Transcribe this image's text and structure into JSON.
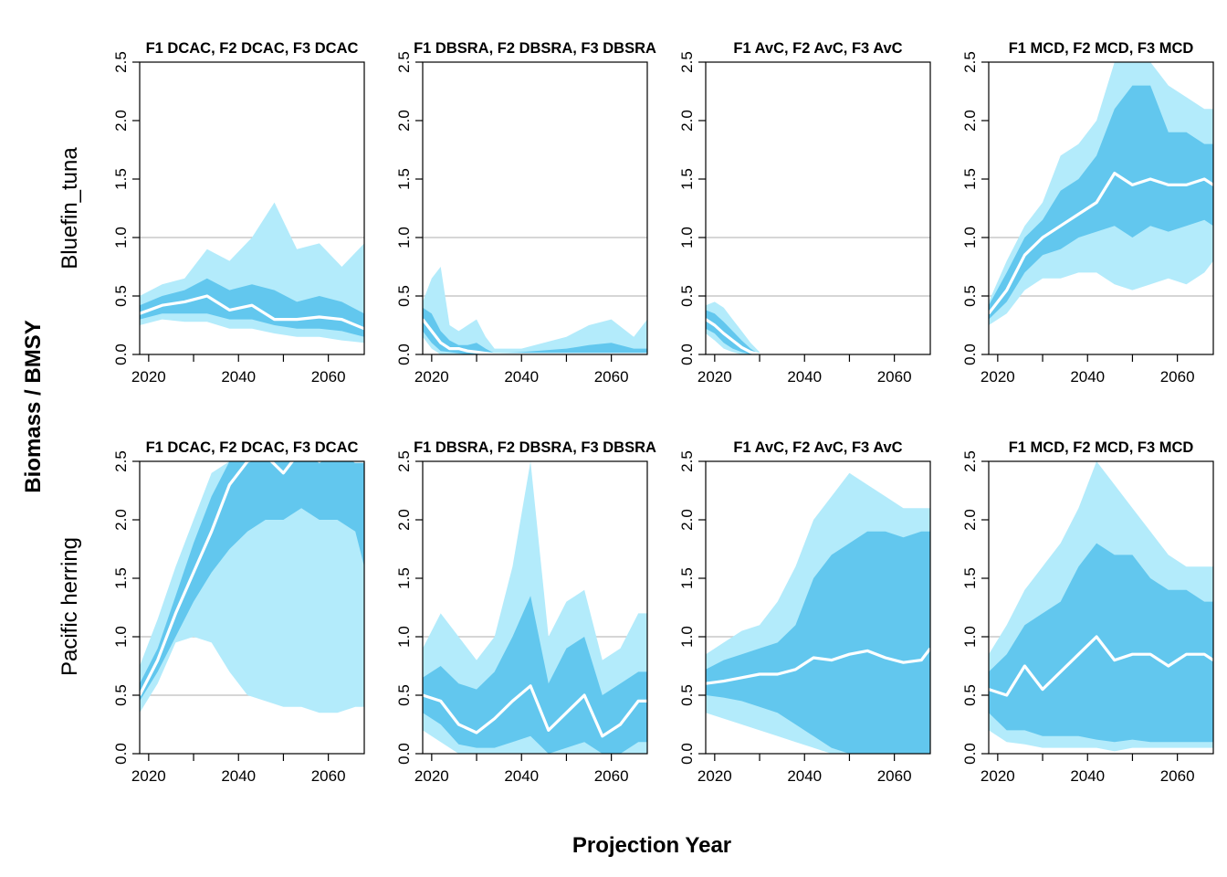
{
  "figure": {
    "ylabel": "Biomass / BMSY",
    "xlabel": "Projection Year",
    "row_labels": [
      "Bluefin_tuna",
      "Pacific herring"
    ],
    "colors": {
      "outer_band": "#b3ebfb",
      "inner_band": "#62c7ee",
      "median": "#ffffff",
      "reference_line": "#c8c8c8",
      "axis": "#000000"
    }
  },
  "chart_data": [
    {
      "type": "area",
      "stock": "Bluefin_tuna",
      "title": "F1 DCAC, F2 DCAC, F3 DCAC",
      "xlim": [
        2018,
        2068
      ],
      "ylim": [
        0,
        2.5
      ],
      "xticks": [
        2020,
        2030,
        2040,
        2050,
        2060
      ],
      "xtick_labels": [
        "2020",
        "2040",
        "2060"
      ],
      "yticks": [
        0.0,
        0.5,
        1.0,
        1.5,
        2.0,
        2.5
      ],
      "ytick_labels": [
        "0.0",
        "0.5",
        "1.0",
        "1.5",
        "2.0",
        "2.5"
      ],
      "ref_lines": [
        0.5,
        1.0
      ],
      "grid": false,
      "x": [
        2018,
        2023,
        2028,
        2033,
        2038,
        2043,
        2048,
        2053,
        2058,
        2063,
        2068
      ],
      "median": [
        0.35,
        0.42,
        0.45,
        0.5,
        0.38,
        0.42,
        0.3,
        0.3,
        0.32,
        0.3,
        0.22
      ],
      "inner_lo": [
        0.3,
        0.35,
        0.35,
        0.35,
        0.3,
        0.3,
        0.25,
        0.22,
        0.22,
        0.2,
        0.15
      ],
      "inner_hi": [
        0.42,
        0.5,
        0.55,
        0.65,
        0.55,
        0.6,
        0.55,
        0.45,
        0.5,
        0.45,
        0.35
      ],
      "outer_lo": [
        0.25,
        0.3,
        0.28,
        0.28,
        0.22,
        0.22,
        0.18,
        0.15,
        0.15,
        0.12,
        0.1
      ],
      "outer_hi": [
        0.5,
        0.6,
        0.65,
        0.9,
        0.8,
        1.0,
        1.3,
        0.9,
        0.95,
        0.75,
        0.95
      ]
    },
    {
      "type": "area",
      "stock": "Bluefin_tuna",
      "title": "F1 DBSRA, F2 DBSRA, F3 DBSRA",
      "xlim": [
        2018,
        2068
      ],
      "ylim": [
        0,
        2.5
      ],
      "xticks": [
        2020,
        2030,
        2040,
        2050,
        2060
      ],
      "xtick_labels": [
        "2020",
        "2040",
        "2060"
      ],
      "yticks": [
        0.0,
        0.5,
        1.0,
        1.5,
        2.0,
        2.5
      ],
      "ytick_labels": [
        "0.0",
        "0.5",
        "1.0",
        "1.5",
        "2.0",
        "2.5"
      ],
      "ref_lines": [
        0.5,
        1.0
      ],
      "grid": false,
      "x": [
        2018,
        2020,
        2022,
        2024,
        2026,
        2028,
        2030,
        2032,
        2034,
        2040,
        2050,
        2055,
        2060,
        2065,
        2068
      ],
      "median": [
        0.3,
        0.2,
        0.1,
        0.05,
        0.05,
        0.03,
        0.02,
        0.01,
        0.0,
        0.0,
        0.0,
        0.0,
        0.0,
        0.0,
        0.0
      ],
      "inner_lo": [
        0.2,
        0.1,
        0.03,
        0.02,
        0.01,
        0.0,
        0.0,
        0.0,
        0.0,
        0.0,
        0.0,
        0.0,
        0.0,
        0.0,
        0.0
      ],
      "inner_hi": [
        0.4,
        0.35,
        0.2,
        0.12,
        0.08,
        0.08,
        0.1,
        0.05,
        0.01,
        0.02,
        0.05,
        0.08,
        0.1,
        0.05,
        0.05
      ],
      "outer_lo": [
        0.15,
        0.05,
        0.0,
        0.0,
        0.0,
        0.0,
        0.0,
        0.0,
        0.0,
        0.0,
        0.0,
        0.0,
        0.0,
        0.0,
        0.0
      ],
      "outer_hi": [
        0.45,
        0.65,
        0.75,
        0.25,
        0.2,
        0.25,
        0.3,
        0.15,
        0.05,
        0.05,
        0.15,
        0.25,
        0.3,
        0.15,
        0.3
      ]
    },
    {
      "type": "area",
      "stock": "Bluefin_tuna",
      "title": "F1 AvC, F2 AvC, F3 AvC",
      "xlim": [
        2018,
        2068
      ],
      "ylim": [
        0,
        2.5
      ],
      "xticks": [
        2020,
        2030,
        2040,
        2050,
        2060
      ],
      "xtick_labels": [
        "2020",
        "2040",
        "2060"
      ],
      "yticks": [
        0.0,
        0.5,
        1.0,
        1.5,
        2.0,
        2.5
      ],
      "ytick_labels": [
        "0.0",
        "0.5",
        "1.0",
        "1.5",
        "2.0",
        "2.5"
      ],
      "ref_lines": [
        0.5,
        1.0
      ],
      "grid": false,
      "x": [
        2018,
        2020,
        2022,
        2024,
        2026,
        2028,
        2030
      ],
      "median": [
        0.3,
        0.25,
        0.18,
        0.12,
        0.06,
        0.02,
        0.0
      ],
      "inner_lo": [
        0.22,
        0.18,
        0.1,
        0.05,
        0.02,
        0.0,
        0.0
      ],
      "inner_hi": [
        0.38,
        0.35,
        0.28,
        0.2,
        0.12,
        0.05,
        0.0
      ],
      "outer_lo": [
        0.18,
        0.12,
        0.05,
        0.02,
        0.0,
        0.0,
        0.0
      ],
      "outer_hi": [
        0.42,
        0.45,
        0.4,
        0.3,
        0.2,
        0.1,
        0.02
      ]
    },
    {
      "type": "area",
      "stock": "Bluefin_tuna",
      "title": "F1 MCD, F2 MCD, F3 MCD",
      "xlim": [
        2018,
        2068
      ],
      "ylim": [
        0,
        2.5
      ],
      "xticks": [
        2020,
        2030,
        2040,
        2050,
        2060
      ],
      "xtick_labels": [
        "2020",
        "2040",
        "2060"
      ],
      "yticks": [
        0.0,
        0.5,
        1.0,
        1.5,
        2.0,
        2.5
      ],
      "ytick_labels": [
        "0.0",
        "0.5",
        "1.0",
        "1.5",
        "2.0",
        "2.5"
      ],
      "ref_lines": [
        0.5,
        1.0
      ],
      "grid": false,
      "x": [
        2018,
        2022,
        2026,
        2030,
        2034,
        2038,
        2042,
        2046,
        2050,
        2054,
        2058,
        2062,
        2066,
        2068
      ],
      "median": [
        0.35,
        0.55,
        0.85,
        1.0,
        1.1,
        1.2,
        1.3,
        1.55,
        1.45,
        1.5,
        1.45,
        1.45,
        1.5,
        1.45
      ],
      "inner_lo": [
        0.3,
        0.45,
        0.7,
        0.85,
        0.9,
        1.0,
        1.05,
        1.1,
        1.0,
        1.1,
        1.05,
        1.1,
        1.15,
        1.1
      ],
      "inner_hi": [
        0.42,
        0.7,
        1.0,
        1.15,
        1.4,
        1.5,
        1.7,
        2.1,
        2.3,
        2.3,
        1.9,
        1.9,
        1.8,
        1.8
      ],
      "outer_lo": [
        0.25,
        0.35,
        0.55,
        0.65,
        0.65,
        0.7,
        0.7,
        0.6,
        0.55,
        0.6,
        0.65,
        0.6,
        0.7,
        0.8
      ],
      "outer_hi": [
        0.45,
        0.8,
        1.1,
        1.3,
        1.7,
        1.8,
        2.0,
        2.5,
        2.5,
        2.5,
        2.3,
        2.2,
        2.1,
        2.1
      ]
    },
    {
      "type": "area",
      "stock": "Pacific herring",
      "title": "F1 DCAC, F2 DCAC, F3 DCAC",
      "xlim": [
        2018,
        2068
      ],
      "ylim": [
        0,
        2.5
      ],
      "xticks": [
        2020,
        2030,
        2040,
        2050,
        2060
      ],
      "xtick_labels": [
        "2020",
        "2040",
        "2060"
      ],
      "yticks": [
        0.0,
        0.5,
        1.0,
        1.5,
        2.0,
        2.5
      ],
      "ytick_labels": [
        "0.0",
        "0.5",
        "1.0",
        "1.5",
        "2.0",
        "2.5"
      ],
      "ref_lines": [
        0.5,
        1.0
      ],
      "grid": false,
      "x": [
        2018,
        2022,
        2026,
        2030,
        2034,
        2038,
        2042,
        2046,
        2050,
        2054,
        2058,
        2062,
        2066,
        2068
      ],
      "median": [
        0.5,
        0.8,
        1.2,
        1.55,
        1.9,
        2.3,
        2.5,
        2.55,
        2.4,
        2.6,
        2.5,
        2.6,
        2.5,
        2.5
      ],
      "inner_lo": [
        0.45,
        0.7,
        1.0,
        1.3,
        1.55,
        1.75,
        1.9,
        2.0,
        2.0,
        2.1,
        2.0,
        2.0,
        1.9,
        1.6
      ],
      "inner_hi": [
        0.6,
        0.9,
        1.35,
        1.8,
        2.2,
        2.5,
        2.5,
        2.5,
        2.5,
        2.5,
        2.5,
        2.5,
        2.5,
        2.5
      ],
      "outer_lo": [
        0.35,
        0.6,
        0.95,
        1.0,
        0.95,
        0.7,
        0.5,
        0.45,
        0.4,
        0.4,
        0.35,
        0.35,
        0.4,
        0.4
      ],
      "outer_hi": [
        0.75,
        1.15,
        1.6,
        2.0,
        2.4,
        2.5,
        2.5,
        2.5,
        2.5,
        2.5,
        2.5,
        2.5,
        2.5,
        2.5
      ]
    },
    {
      "type": "area",
      "stock": "Pacific herring",
      "title": "F1 DBSRA, F2 DBSRA, F3 DBSRA",
      "xlim": [
        2018,
        2068
      ],
      "ylim": [
        0,
        2.5
      ],
      "xticks": [
        2020,
        2030,
        2040,
        2050,
        2060
      ],
      "xtick_labels": [
        "2020",
        "2040",
        "2060"
      ],
      "yticks": [
        0.0,
        0.5,
        1.0,
        1.5,
        2.0,
        2.5
      ],
      "ytick_labels": [
        "0.0",
        "0.5",
        "1.0",
        "1.5",
        "2.0",
        "2.5"
      ],
      "ref_lines": [
        0.5,
        1.0
      ],
      "grid": false,
      "x": [
        2018,
        2022,
        2026,
        2030,
        2034,
        2038,
        2042,
        2046,
        2050,
        2054,
        2058,
        2062,
        2066,
        2068
      ],
      "median": [
        0.5,
        0.45,
        0.25,
        0.18,
        0.3,
        0.45,
        0.58,
        0.2,
        0.35,
        0.5,
        0.15,
        0.25,
        0.45,
        0.45
      ],
      "inner_lo": [
        0.35,
        0.25,
        0.08,
        0.05,
        0.05,
        0.1,
        0.15,
        0.0,
        0.05,
        0.1,
        0.0,
        0.0,
        0.1,
        0.1
      ],
      "inner_hi": [
        0.65,
        0.75,
        0.6,
        0.55,
        0.7,
        1.0,
        1.35,
        0.6,
        0.9,
        1.0,
        0.5,
        0.6,
        0.7,
        0.7
      ],
      "outer_lo": [
        0.2,
        0.1,
        0.0,
        0.0,
        0.0,
        0.0,
        0.0,
        0.0,
        0.0,
        0.0,
        0.0,
        0.0,
        0.0,
        0.0
      ],
      "outer_hi": [
        0.9,
        1.2,
        1.0,
        0.8,
        1.0,
        1.6,
        2.5,
        1.0,
        1.3,
        1.4,
        0.8,
        0.9,
        1.2,
        1.2
      ]
    },
    {
      "type": "area",
      "stock": "Pacific herring",
      "title": "F1 AvC, F2 AvC, F3 AvC",
      "xlim": [
        2018,
        2068
      ],
      "ylim": [
        0,
        2.5
      ],
      "xticks": [
        2020,
        2030,
        2040,
        2050,
        2060
      ],
      "xtick_labels": [
        "2020",
        "2040",
        "2060"
      ],
      "yticks": [
        0.0,
        0.5,
        1.0,
        1.5,
        2.0,
        2.5
      ],
      "ytick_labels": [
        "0.0",
        "0.5",
        "1.0",
        "1.5",
        "2.0",
        "2.5"
      ],
      "ref_lines": [
        0.5,
        1.0
      ],
      "grid": false,
      "x": [
        2018,
        2022,
        2026,
        2030,
        2034,
        2038,
        2042,
        2046,
        2050,
        2054,
        2058,
        2062,
        2066,
        2068
      ],
      "median": [
        0.6,
        0.62,
        0.65,
        0.68,
        0.68,
        0.72,
        0.82,
        0.8,
        0.85,
        0.88,
        0.82,
        0.78,
        0.8,
        0.9
      ],
      "inner_lo": [
        0.5,
        0.48,
        0.45,
        0.4,
        0.35,
        0.25,
        0.15,
        0.05,
        0.0,
        0.0,
        0.0,
        0.0,
        0.0,
        0.0
      ],
      "inner_hi": [
        0.72,
        0.8,
        0.85,
        0.9,
        0.95,
        1.1,
        1.5,
        1.7,
        1.8,
        1.9,
        1.9,
        1.85,
        1.9,
        1.9
      ],
      "outer_lo": [
        0.35,
        0.3,
        0.25,
        0.2,
        0.15,
        0.1,
        0.05,
        0.0,
        0.0,
        0.0,
        0.0,
        0.0,
        0.0,
        0.0
      ],
      "outer_hi": [
        0.85,
        0.95,
        1.05,
        1.1,
        1.3,
        1.6,
        2.0,
        2.2,
        2.4,
        2.3,
        2.2,
        2.1,
        2.1,
        2.1
      ]
    },
    {
      "type": "area",
      "stock": "Pacific herring",
      "title": "F1 MCD, F2 MCD, F3 MCD",
      "xlim": [
        2018,
        2068
      ],
      "ylim": [
        0,
        2.5
      ],
      "xticks": [
        2020,
        2030,
        2040,
        2050,
        2060
      ],
      "xtick_labels": [
        "2020",
        "2040",
        "2060"
      ],
      "yticks": [
        0.0,
        0.5,
        1.0,
        1.5,
        2.0,
        2.5
      ],
      "ytick_labels": [
        "0.0",
        "0.5",
        "1.0",
        "1.5",
        "2.0",
        "2.5"
      ],
      "ref_lines": [
        0.5,
        1.0
      ],
      "grid": false,
      "x": [
        2018,
        2022,
        2026,
        2030,
        2034,
        2038,
        2042,
        2046,
        2050,
        2054,
        2058,
        2062,
        2066,
        2068
      ],
      "median": [
        0.55,
        0.5,
        0.75,
        0.55,
        0.7,
        0.85,
        1.0,
        0.8,
        0.85,
        0.85,
        0.75,
        0.85,
        0.85,
        0.8
      ],
      "inner_lo": [
        0.35,
        0.2,
        0.2,
        0.15,
        0.15,
        0.15,
        0.12,
        0.1,
        0.12,
        0.1,
        0.1,
        0.1,
        0.1,
        0.1
      ],
      "inner_hi": [
        0.7,
        0.85,
        1.1,
        1.2,
        1.3,
        1.6,
        1.8,
        1.7,
        1.7,
        1.5,
        1.4,
        1.4,
        1.3,
        1.3
      ],
      "outer_lo": [
        0.2,
        0.1,
        0.08,
        0.05,
        0.05,
        0.05,
        0.05,
        0.02,
        0.05,
        0.05,
        0.05,
        0.05,
        0.05,
        0.05
      ],
      "outer_hi": [
        0.85,
        1.1,
        1.4,
        1.6,
        1.8,
        2.1,
        2.5,
        2.3,
        2.1,
        1.9,
        1.7,
        1.6,
        1.6,
        1.6
      ]
    }
  ]
}
